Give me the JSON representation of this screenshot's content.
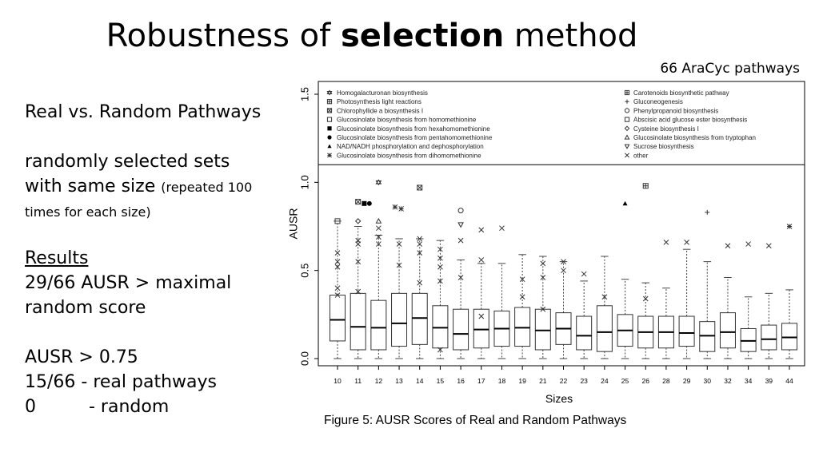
{
  "slide": {
    "title_prefix": "Robustness of ",
    "title_bold": "selection",
    "title_suffix": " method",
    "subtitle": "66 AraCyc pathways",
    "left_heading": "Real vs. Random Pathways",
    "left_line1": "randomly selected sets",
    "left_line2": "with same size ",
    "left_small": "(repeated 100 times for each size)",
    "results_heading": "Results",
    "results_line1": "29/66 AUSR > maximal",
    "results_line2": "random score",
    "ausr_line": "AUSR > 0.75",
    "real_line": "15/66  - real pathways",
    "random_count": "0",
    "random_label": "- random",
    "caption": "Figure 5: AUSR Scores of Real and Random Pathways"
  },
  "chart_data": {
    "type": "box",
    "xlabel": "Sizes",
    "ylabel": "AUSR",
    "ylim": [
      0,
      1.5
    ],
    "yticks": [
      "0.0",
      "0.5",
      "1.0",
      "1.5"
    ],
    "categories": [
      "10",
      "11",
      "12",
      "13",
      "14",
      "15",
      "16",
      "17",
      "18",
      "19",
      "21",
      "22",
      "23",
      "24",
      "25",
      "26",
      "28",
      "29",
      "30",
      "32",
      "34",
      "39",
      "44"
    ],
    "boxes": [
      {
        "lw": 0.0,
        "q1": 0.1,
        "med": 0.22,
        "q3": 0.36,
        "uw": 0.78
      },
      {
        "lw": 0.0,
        "q1": 0.05,
        "med": 0.18,
        "q3": 0.37,
        "uw": 0.75
      },
      {
        "lw": 0.0,
        "q1": 0.05,
        "med": 0.175,
        "q3": 0.33,
        "uw": 0.7
      },
      {
        "lw": 0.0,
        "q1": 0.07,
        "med": 0.2,
        "q3": 0.37,
        "uw": 0.68
      },
      {
        "lw": 0.0,
        "q1": 0.08,
        "med": 0.23,
        "q3": 0.37,
        "uw": 0.68
      },
      {
        "lw": 0.0,
        "q1": 0.06,
        "med": 0.175,
        "q3": 0.3,
        "uw": 0.67
      },
      {
        "lw": 0.0,
        "q1": 0.05,
        "med": 0.14,
        "q3": 0.28,
        "uw": 0.56
      },
      {
        "lw": 0.0,
        "q1": 0.06,
        "med": 0.165,
        "q3": 0.28,
        "uw": 0.54
      },
      {
        "lw": 0.0,
        "q1": 0.07,
        "med": 0.17,
        "q3": 0.27,
        "uw": 0.54
      },
      {
        "lw": 0.0,
        "q1": 0.07,
        "med": 0.175,
        "q3": 0.29,
        "uw": 0.59
      },
      {
        "lw": 0.0,
        "q1": 0.05,
        "med": 0.16,
        "q3": 0.28,
        "uw": 0.58
      },
      {
        "lw": 0.0,
        "q1": 0.08,
        "med": 0.17,
        "q3": 0.26,
        "uw": 0.55
      },
      {
        "lw": 0.0,
        "q1": 0.05,
        "med": 0.13,
        "q3": 0.24,
        "uw": 0.44
      },
      {
        "lw": 0.0,
        "q1": 0.04,
        "med": 0.15,
        "q3": 0.3,
        "uw": 0.58
      },
      {
        "lw": 0.0,
        "q1": 0.07,
        "med": 0.16,
        "q3": 0.25,
        "uw": 0.45
      },
      {
        "lw": 0.0,
        "q1": 0.06,
        "med": 0.15,
        "q3": 0.24,
        "uw": 0.43
      },
      {
        "lw": 0.0,
        "q1": 0.06,
        "med": 0.15,
        "q3": 0.24,
        "uw": 0.4
      },
      {
        "lw": 0.0,
        "q1": 0.07,
        "med": 0.145,
        "q3": 0.24,
        "uw": 0.62
      },
      {
        "lw": 0.0,
        "q1": 0.04,
        "med": 0.13,
        "q3": 0.21,
        "uw": 0.55
      },
      {
        "lw": 0.0,
        "q1": 0.06,
        "med": 0.15,
        "q3": 0.26,
        "uw": 0.46
      },
      {
        "lw": 0.0,
        "q1": 0.04,
        "med": 0.1,
        "q3": 0.17,
        "uw": 0.35
      },
      {
        "lw": 0.0,
        "q1": 0.05,
        "med": 0.11,
        "q3": 0.19,
        "uw": 0.37
      },
      {
        "lw": 0.0,
        "q1": 0.05,
        "med": 0.12,
        "q3": 0.2,
        "uw": 0.39
      }
    ],
    "outliers": [
      [
        0,
        0.78,
        "sq"
      ],
      [
        0,
        0.6,
        "x"
      ],
      [
        0,
        0.55,
        "x"
      ],
      [
        0,
        0.52,
        "x"
      ],
      [
        0,
        0.4,
        "x"
      ],
      [
        0,
        0.36,
        "x"
      ],
      [
        1,
        0.89,
        "boxx"
      ],
      [
        1,
        0.78,
        "diamond"
      ],
      [
        1,
        0.67,
        "x"
      ],
      [
        1,
        0.65,
        "x"
      ],
      [
        1,
        0.55,
        "x"
      ],
      [
        1,
        0.38,
        "x"
      ],
      [
        1.3,
        0.88,
        "fsq"
      ],
      [
        1.55,
        0.88,
        "fcirc"
      ],
      [
        2,
        1.0,
        "star6"
      ],
      [
        2,
        0.78,
        "tri"
      ],
      [
        2,
        0.74,
        "x"
      ],
      [
        2,
        0.69,
        "x"
      ],
      [
        2,
        0.65,
        "x"
      ],
      [
        2.8,
        0.86,
        "ast"
      ],
      [
        3.1,
        0.85,
        "ast"
      ],
      [
        3,
        0.65,
        "x"
      ],
      [
        3,
        0.53,
        "x"
      ],
      [
        4,
        0.97,
        "boxx"
      ],
      [
        4,
        0.68,
        "x"
      ],
      [
        4,
        0.65,
        "x"
      ],
      [
        4,
        0.6,
        "x"
      ],
      [
        4,
        0.43,
        "x"
      ],
      [
        5,
        0.62,
        "x"
      ],
      [
        5,
        0.57,
        "x"
      ],
      [
        5,
        0.52,
        "x"
      ],
      [
        5,
        0.44,
        "x"
      ],
      [
        5,
        0.05,
        "x"
      ],
      [
        6,
        0.84,
        "circ"
      ],
      [
        6,
        0.76,
        "vtri"
      ],
      [
        6,
        0.67,
        "x"
      ],
      [
        6,
        0.46,
        "x"
      ],
      [
        7,
        0.73,
        "x"
      ],
      [
        7,
        0.56,
        "x"
      ],
      [
        7,
        0.24,
        "x"
      ],
      [
        8,
        0.74,
        "x"
      ],
      [
        9,
        0.45,
        "x"
      ],
      [
        9,
        0.35,
        "x"
      ],
      [
        10,
        0.54,
        "x"
      ],
      [
        10,
        0.46,
        "x"
      ],
      [
        10,
        0.28,
        "x"
      ],
      [
        11,
        0.55,
        "x"
      ],
      [
        11,
        0.5,
        "x"
      ],
      [
        12,
        0.48,
        "x"
      ],
      [
        13,
        0.35,
        "x"
      ],
      [
        14,
        0.88,
        "ftri"
      ],
      [
        15,
        0.98,
        "boxsq"
      ],
      [
        15,
        0.34,
        "x"
      ],
      [
        16,
        0.66,
        "x"
      ],
      [
        17,
        0.66,
        "x"
      ],
      [
        18,
        0.83,
        "plus"
      ],
      [
        19,
        0.64,
        "x"
      ],
      [
        20,
        0.65,
        "x"
      ],
      [
        21,
        0.64,
        "x"
      ],
      [
        22,
        0.75,
        "ast"
      ]
    ],
    "legend": {
      "placement": "top",
      "col1": [
        {
          "sym": "star6",
          "label": "Homogalacturonan biosynthesis"
        },
        {
          "sym": "boxsq",
          "label": "Photosynthesis light reactions"
        },
        {
          "sym": "boxx",
          "label": "Chlorophyllide a biosynthesis I"
        },
        {
          "sym": "sq",
          "label": "Glucosinolate biosynthesis from homomethionine"
        },
        {
          "sym": "fsq",
          "label": "Glucosinolate biosynthesis from hexahomomethionine"
        },
        {
          "sym": "fcirc",
          "label": "Glucosinolate biosynthesis from pentahomomethionine"
        },
        {
          "sym": "ftri",
          "label": "NAD/NADH phosphorylation and dephosphorylation"
        },
        {
          "sym": "ast",
          "label": "Glucosinolate biosynthesis from dihomomethionine"
        }
      ],
      "col2": [
        {
          "sym": "boxplus",
          "label": "Carotenoids biosynthetic pathway"
        },
        {
          "sym": "plus",
          "label": "Gluconeogenesis"
        },
        {
          "sym": "circ",
          "label": "Phenylpropanoid biosynthesis"
        },
        {
          "sym": "sq",
          "label": "Abscisic acid glucose ester biosynthesis"
        },
        {
          "sym": "diamond",
          "label": "Cysteine biosynthesis I"
        },
        {
          "sym": "tri",
          "label": "Glucosinolate biosynthesis from tryptophan"
        },
        {
          "sym": "vtri",
          "label": "Sucrose biosynthesis"
        },
        {
          "sym": "x",
          "label": "other"
        }
      ]
    }
  }
}
